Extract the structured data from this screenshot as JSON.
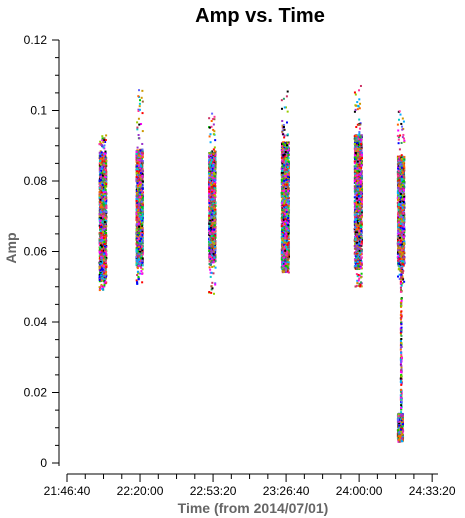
{
  "chart_data": {
    "type": "scatter",
    "title": "Amp vs. Time",
    "xlabel": "Time (from 2014/07/01)",
    "ylabel": "Amp",
    "x_unit": "seconds from 2014/07/01 00:00:00",
    "xlim": [
      78400,
      88560
    ],
    "ylim": [
      0,
      0.12
    ],
    "x_ticks": [
      {
        "value": 78400,
        "label": "21:46:40"
      },
      {
        "value": 80400,
        "label": "22:20:00"
      },
      {
        "value": 82400,
        "label": "22:53:20"
      },
      {
        "value": 84400,
        "label": "23:26:40"
      },
      {
        "value": 86400,
        "label": "24:00:00"
      },
      {
        "value": 88400,
        "label": "24:33:20"
      }
    ],
    "y_ticks": [
      {
        "value": 0,
        "label": "0"
      },
      {
        "value": 0.02,
        "label": "0.02"
      },
      {
        "value": 0.04,
        "label": "0.04"
      },
      {
        "value": 0.06,
        "label": "0.06"
      },
      {
        "value": 0.08,
        "label": "0.08"
      },
      {
        "value": 0.1,
        "label": "0.1"
      },
      {
        "value": 0.12,
        "label": "0.12"
      }
    ],
    "grid": false,
    "legend": "none",
    "scans": [
      {
        "x_start": 79290,
        "x_end": 79480,
        "amp_low": 0.052,
        "amp_high": 0.088,
        "outlier_max": 0.093,
        "outlier_min": 0.049
      },
      {
        "x_start": 80300,
        "x_end": 80480,
        "amp_low": 0.056,
        "amp_high": 0.089,
        "outlier_max": 0.106,
        "outlier_min": 0.05
      },
      {
        "x_start": 82290,
        "x_end": 82470,
        "amp_low": 0.057,
        "amp_high": 0.088,
        "outlier_max": 0.1,
        "outlier_min": 0.048
      },
      {
        "x_start": 84280,
        "x_end": 84480,
        "amp_low": 0.055,
        "amp_high": 0.091,
        "outlier_max": 0.106,
        "outlier_min": 0.054
      },
      {
        "x_start": 86280,
        "x_end": 86480,
        "amp_low": 0.055,
        "amp_high": 0.093,
        "outlier_max": 0.108,
        "outlier_min": 0.05
      },
      {
        "x_start": 87460,
        "x_end": 87640,
        "amp_low": 0.056,
        "amp_high": 0.087,
        "outlier_max": 0.1,
        "outlier_min": 0.05,
        "tail_low": 0.006,
        "tail_high": 0.014
      }
    ],
    "series_colors": [
      "#ff0000",
      "#00cc00",
      "#0000ff",
      "#ff00ff",
      "#00cccc",
      "#cc9900",
      "#000000",
      "#9933cc",
      "#ff6600",
      "#339966",
      "#cc3366",
      "#6666ff",
      "#99cc00",
      "#ff3399",
      "#00aaff",
      "#996633"
    ]
  }
}
